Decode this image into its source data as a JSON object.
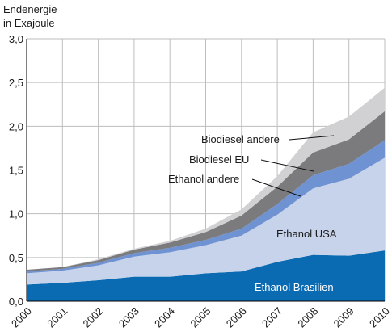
{
  "chart_data": {
    "type": "area",
    "stacked": true,
    "ylabel_line1": "Endenergie",
    "ylabel_line2": "in Exajoule",
    "x": [
      2000,
      2001,
      2002,
      2003,
      2004,
      2005,
      2006,
      2007,
      2008,
      2009,
      2010
    ],
    "xticks": [
      "2000",
      "2001",
      "2002",
      "2003",
      "2004",
      "2005",
      "2006",
      "2007",
      "2008",
      "2009",
      "2010"
    ],
    "ylim": [
      0,
      3.0
    ],
    "yticks": [
      "0,0",
      "0,5",
      "1,0",
      "1,5",
      "2,0",
      "2,5",
      "3,0"
    ],
    "yticks_values": [
      0,
      0.5,
      1.0,
      1.5,
      2.0,
      2.5,
      3.0
    ],
    "grid": true,
    "series": [
      {
        "name": "Ethanol Brasilien",
        "color": "#0a6ab2",
        "values": [
          0.19,
          0.21,
          0.24,
          0.28,
          0.28,
          0.32,
          0.34,
          0.45,
          0.53,
          0.52,
          0.58
        ]
      },
      {
        "name": "Ethanol USA",
        "color": "#c7d3ea",
        "values": [
          0.13,
          0.14,
          0.17,
          0.23,
          0.28,
          0.32,
          0.41,
          0.54,
          0.76,
          0.88,
          1.06
        ]
      },
      {
        "name": "Ethanol andere",
        "color": "#6f93d2",
        "values": [
          0.02,
          0.02,
          0.03,
          0.04,
          0.05,
          0.06,
          0.08,
          0.12,
          0.15,
          0.17,
          0.2
        ]
      },
      {
        "name": "Biodiesel EU",
        "color": "#7b7b7d",
        "values": [
          0.02,
          0.02,
          0.03,
          0.04,
          0.06,
          0.09,
          0.15,
          0.2,
          0.26,
          0.28,
          0.33
        ]
      },
      {
        "name": "Biodiesel andere",
        "color": "#d1d1d3",
        "values": [
          0.0,
          0.0,
          0.01,
          0.01,
          0.02,
          0.04,
          0.07,
          0.12,
          0.23,
          0.26,
          0.27
        ]
      }
    ],
    "labels": {
      "biodiesel_andere": "Biodiesel andere",
      "biodiesel_eu": "Biodiesel EU",
      "ethanol_andere": "Ethanol andere",
      "ethanol_usa": "Ethanol USA",
      "ethanol_brasilien": "Ethanol Brasilien"
    }
  }
}
